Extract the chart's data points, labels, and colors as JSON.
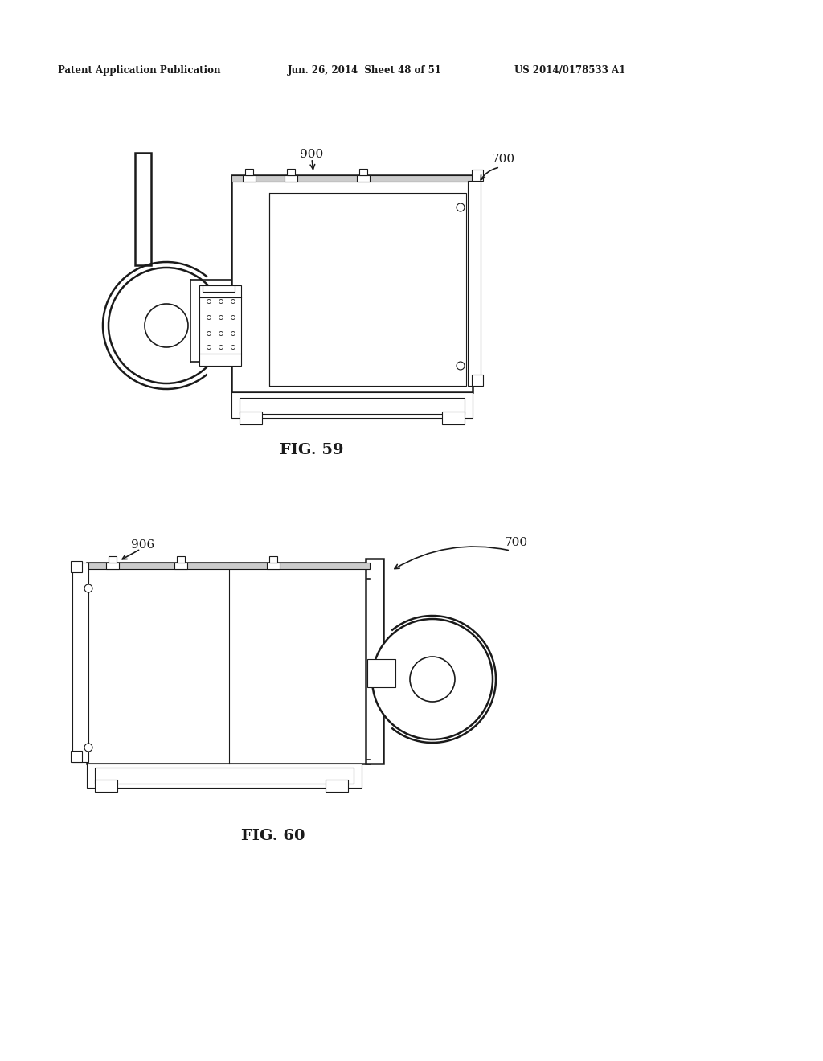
{
  "background_color": "#ffffff",
  "header_left": "Patent Application Publication",
  "header_center": "Jun. 26, 2014  Sheet 48 of 51",
  "header_right": "US 2014/0178533 A1",
  "fig59_label": "FIG. 59",
  "fig60_label": "FIG. 60",
  "label_700_fig59": "700",
  "label_900_fig59": "900",
  "label_700_fig60": "700",
  "label_906_fig60": "906",
  "color": "#1a1a1a"
}
